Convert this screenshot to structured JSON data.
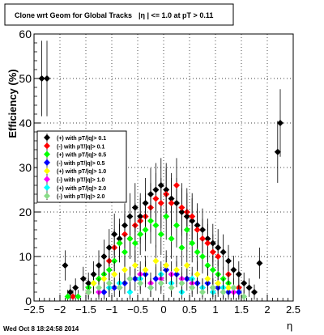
{
  "footer": {
    "timestamp": "Wed Oct  8 18:24:58 2014"
  },
  "chart_data": {
    "type": "scatter",
    "title": "Clone wrt Geom for Global Tracks |η | <= 1.0 at pT > 0.11",
    "title_parts": [
      "Clone wrt Geom for Global Tracks",
      "|η | <= 1.0 at pT > 0.11"
    ],
    "xlabel": "η",
    "ylabel": "Efficiency (%)",
    "xlim": [
      -2.5,
      2.5
    ],
    "ylim": [
      0,
      60
    ],
    "x_ticks": [
      -2.5,
      -2,
      -1.5,
      -1,
      -0.5,
      0,
      0.5,
      1,
      1.5,
      2,
      2.5
    ],
    "x_tick_labels": [
      "−2.5",
      "−2",
      "−1.5",
      "−1",
      "−0.5",
      "0",
      "0.5",
      "1",
      "1.5",
      "2",
      "2.5"
    ],
    "y_ticks": [
      0,
      10,
      20,
      30,
      40,
      50,
      60
    ],
    "y_tick_labels": [
      "0",
      "10",
      "20",
      "30",
      "40",
      "50",
      "60"
    ],
    "grid": true,
    "legend_position": "left-middle",
    "series": [
      {
        "name": "(+) with pT/|q|> 0.1",
        "color": "#000000",
        "x": [
          -2.35,
          -2.25,
          -1.9,
          -1.8,
          -1.7,
          -1.55,
          -1.45,
          -1.35,
          -1.25,
          -1.15,
          -1.05,
          -0.95,
          -0.85,
          -0.75,
          -0.65,
          -0.55,
          -0.45,
          -0.35,
          -0.25,
          -0.15,
          -0.05,
          0.05,
          0.15,
          0.25,
          0.35,
          0.45,
          0.55,
          0.65,
          0.75,
          0.85,
          0.95,
          1.05,
          1.15,
          1.25,
          1.35,
          1.45,
          1.55,
          1.65,
          1.75,
          1.85,
          2.2,
          2.25
        ],
        "y": [
          50,
          50,
          8,
          2,
          3,
          5,
          4,
          6,
          8,
          10,
          12,
          15,
          14,
          17,
          19,
          21,
          19,
          22,
          24,
          25,
          26,
          25,
          23,
          22,
          20,
          19,
          18,
          17,
          16,
          14,
          13,
          12,
          11,
          9,
          7,
          6,
          4,
          3,
          2,
          8.5,
          33.5,
          40
        ]
      },
      {
        "name": "(-) with pT/|q|> 0.1",
        "color": "#ff0000",
        "x": [
          -1.75,
          -1.45,
          -1.25,
          -1.05,
          -0.95,
          -0.85,
          -0.75,
          -0.65,
          -0.55,
          -0.45,
          -0.35,
          -0.25,
          -0.15,
          -0.05,
          0.05,
          0.15,
          0.25,
          0.35,
          0.45,
          0.55,
          0.65,
          0.75,
          0.85,
          0.95,
          1.05,
          1.25,
          1.45
        ],
        "y": [
          1,
          2,
          5,
          9,
          12,
          13,
          15,
          14,
          17,
          18,
          19,
          21,
          23,
          22,
          24,
          22,
          26,
          21,
          20,
          19,
          16,
          14,
          13,
          11,
          10,
          6,
          3
        ]
      },
      {
        "name": "(+) with pT/|q|> 0.5",
        "color": "#00ff00",
        "x": [
          -1.85,
          -1.65,
          -1.45,
          -1.35,
          -1.25,
          -1.15,
          -1.05,
          -0.95,
          -0.85,
          -0.75,
          -0.65,
          -0.55,
          -0.45,
          -0.35,
          -0.25,
          -0.15,
          -0.05,
          0.05,
          0.15,
          0.25,
          0.35,
          0.45,
          0.55,
          0.65,
          0.75,
          0.85,
          0.95,
          1.05,
          1.15,
          1.25,
          1.45
        ],
        "y": [
          1,
          1,
          3,
          4,
          5,
          6,
          7,
          9,
          13,
          11,
          14,
          13,
          15,
          16,
          18,
          17,
          15,
          19,
          14,
          17,
          12,
          16,
          13,
          11,
          10,
          8,
          7,
          6,
          5,
          4,
          2
        ]
      },
      {
        "name": "(-) with pT/|q|> 0.5",
        "color": "#0000ff",
        "x": [
          -1.15,
          -0.95,
          -0.75,
          -0.55,
          -0.35,
          -0.15,
          0.05,
          0.25,
          0.45,
          0.65,
          0.85,
          1.05,
          1.25,
          1.45
        ],
        "y": [
          2,
          3,
          4,
          5,
          6,
          5,
          7,
          6,
          5,
          4,
          4,
          3,
          2,
          2
        ]
      },
      {
        "name": "(+) with pT/|q|> 1.0",
        "color": "#ffff00",
        "x": [
          -1.35,
          -1.15,
          -0.95,
          -0.75,
          -0.55,
          -0.35,
          -0.15,
          0.05,
          0.25,
          0.45,
          0.65,
          0.85,
          1.05,
          1.25
        ],
        "y": [
          4,
          5,
          6,
          7,
          8,
          7,
          9,
          8,
          7,
          8,
          6,
          5,
          4,
          3
        ]
      },
      {
        "name": "(-) with pT/|q|> 1.0",
        "color": "#ff00ff",
        "x": [
          -1.25,
          -1.05,
          -0.85,
          -0.65,
          -0.45,
          -0.25,
          -0.05,
          0.15,
          0.35,
          0.55,
          0.75,
          0.95,
          1.15,
          1.35
        ],
        "y": [
          2,
          3,
          3,
          5,
          6,
          4,
          5,
          6,
          5,
          4,
          3,
          3,
          2,
          2
        ]
      },
      {
        "name": "(+) with pT/|q|> 2.0",
        "color": "#00ffff",
        "x": [
          -1.05,
          -0.85,
          -0.65,
          -0.45,
          -0.25,
          -0.05,
          0.15,
          0.35,
          0.55,
          0.75,
          0.95,
          1.15
        ],
        "y": [
          3,
          4,
          2,
          5,
          3,
          6,
          4,
          2,
          5,
          3,
          2,
          3
        ]
      },
      {
        "name": "(-) with pT/|q|> 2.0",
        "color": "#88dd88",
        "x": [
          -1.45,
          -1.25,
          -1.05,
          -0.85,
          -0.65,
          -0.45,
          -0.25,
          -0.05,
          0.15,
          0.35,
          0.55,
          0.75,
          0.95,
          1.15,
          1.35,
          1.55
        ],
        "y": [
          2,
          3,
          4,
          3,
          5,
          4,
          3,
          4,
          3,
          4,
          3,
          2,
          3,
          2,
          3,
          1
        ]
      }
    ]
  }
}
